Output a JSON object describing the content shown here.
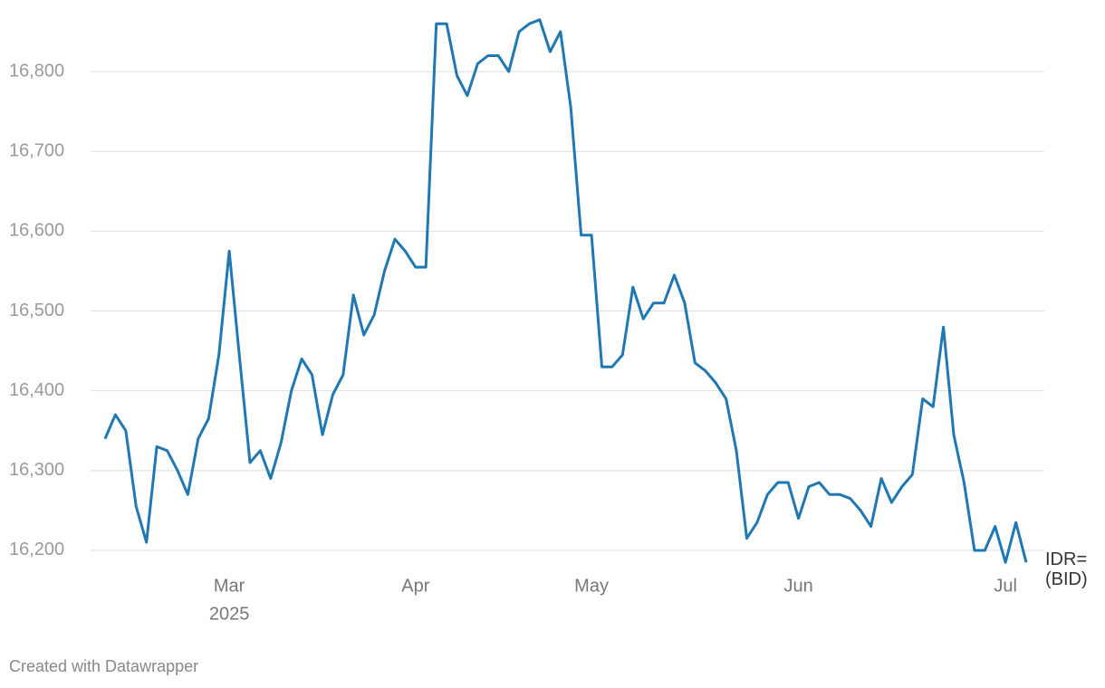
{
  "chart_data": {
    "type": "line",
    "categories": [
      null,
      null,
      null,
      null,
      null,
      null,
      null,
      null,
      null,
      null,
      null,
      null,
      "Mar",
      null,
      null,
      null,
      null,
      null,
      null,
      null,
      null,
      null,
      null,
      null,
      null,
      null,
      null,
      null,
      null,
      null,
      "Apr",
      null,
      null,
      null,
      null,
      null,
      null,
      null,
      null,
      null,
      null,
      null,
      null,
      null,
      null,
      null,
      null,
      "May",
      null,
      null,
      null,
      null,
      null,
      null,
      null,
      null,
      null,
      null,
      null,
      null,
      null,
      null,
      null,
      null,
      null,
      null,
      null,
      "Jun",
      null,
      null,
      null,
      null,
      null,
      null,
      null,
      null,
      null,
      null,
      null,
      null,
      null,
      null,
      null,
      null,
      null,
      null,
      null,
      "Jul",
      null,
      null
    ],
    "year_label": "2025",
    "series": [
      {
        "name": "IDR= (BID)",
        "color": "#1f77b4",
        "values": [
          16340,
          16370,
          16350,
          16255,
          16210,
          16330,
          16325,
          16300,
          16270,
          16340,
          16365,
          16445,
          16575,
          16440,
          16310,
          16325,
          16290,
          16335,
          16400,
          16440,
          16420,
          16345,
          16395,
          16420,
          16520,
          16470,
          16495,
          16550,
          16590,
          16575,
          16555,
          16555,
          16860,
          16860,
          16795,
          16770,
          16810,
          16820,
          16820,
          16800,
          16850,
          16860,
          16865,
          16825,
          16850,
          16755,
          16595,
          16595,
          16430,
          16430,
          16445,
          16530,
          16490,
          16510,
          16510,
          16545,
          16510,
          16435,
          16425,
          16410,
          16390,
          16325,
          16215,
          16235,
          16270,
          16285,
          16285,
          16240,
          16280,
          16285,
          16270,
          16270,
          16265,
          16250,
          16230,
          16290,
          16260,
          16280,
          16295,
          16390,
          16380,
          16480,
          16345,
          16285,
          16200,
          16200,
          16230,
          16185,
          16235,
          16185
        ]
      }
    ],
    "ylim": [
      16175,
      16875
    ],
    "yticks": [
      {
        "value": 16200,
        "label": "16,200"
      },
      {
        "value": 16300,
        "label": "16,300"
      },
      {
        "value": 16400,
        "label": "16,400"
      },
      {
        "value": 16500,
        "label": "16,500"
      },
      {
        "value": 16600,
        "label": "16,600"
      },
      {
        "value": 16700,
        "label": "16,700"
      },
      {
        "value": 16800,
        "label": "16,800"
      }
    ],
    "grid": true,
    "source": "Created with Datawrapper"
  }
}
